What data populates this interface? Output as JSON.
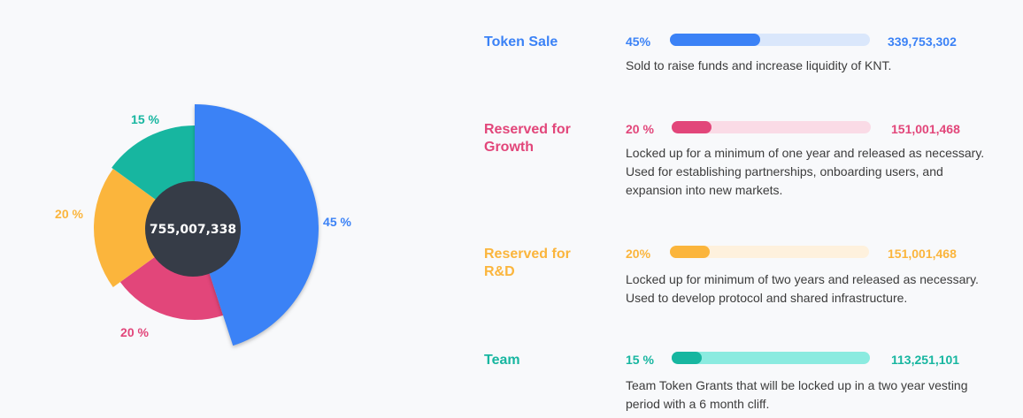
{
  "colors": {
    "token_sale": "#3b82f6",
    "growth": "#e2467a",
    "rnd": "#fbb53c",
    "team": "#17b6a0",
    "center": "#363c47"
  },
  "chart_data": {
    "type": "pie",
    "center_label": "755,007,338",
    "slices": [
      {
        "name": "Token Sale",
        "label": "45 %",
        "value": 45,
        "color": "#3b82f6"
      },
      {
        "name": "Reserved for Growth",
        "label": "20 %",
        "value": 20,
        "color": "#e2467a"
      },
      {
        "name": "Reserved for R&D",
        "label": "20 %",
        "value": 20,
        "color": "#fbb53c"
      },
      {
        "name": "Team",
        "label": "15 %",
        "value": 15,
        "color": "#17b6a0"
      }
    ]
  },
  "allocations": [
    {
      "name": "Token Sale",
      "percent": "45%",
      "fraction": 0.45,
      "amount": "339,753,302",
      "description": "Sold to raise funds and increase liquidity of KNT.",
      "color": "#3b82f6",
      "track_color": "#dae7fb"
    },
    {
      "name": "Reserved for Growth",
      "percent": "20 %",
      "fraction": 0.2,
      "amount": "151,001,468",
      "description": "Locked up for a minimum of one year and released as necessary. Used for establishing partnerships, onboarding users, and expansion into new markets.",
      "color": "#e2467a",
      "track_color": "#fadbe6"
    },
    {
      "name": "Reserved for R&D",
      "percent": "20%",
      "fraction": 0.2,
      "amount": "151,001,468",
      "description": "Locked up for minimum of two years and released as necessary. Used to develop protocol and shared infrastructure.",
      "color": "#fbb53c",
      "track_color": "#fef1dd"
    },
    {
      "name": "Team",
      "percent": "15 %",
      "fraction": 0.15,
      "amount": "113,251,101",
      "description": "Team Token Grants that will be locked up in a two year vesting period with a 6 month cliff.",
      "color": "#17b6a0",
      "track_color": "#8bebe0"
    }
  ]
}
